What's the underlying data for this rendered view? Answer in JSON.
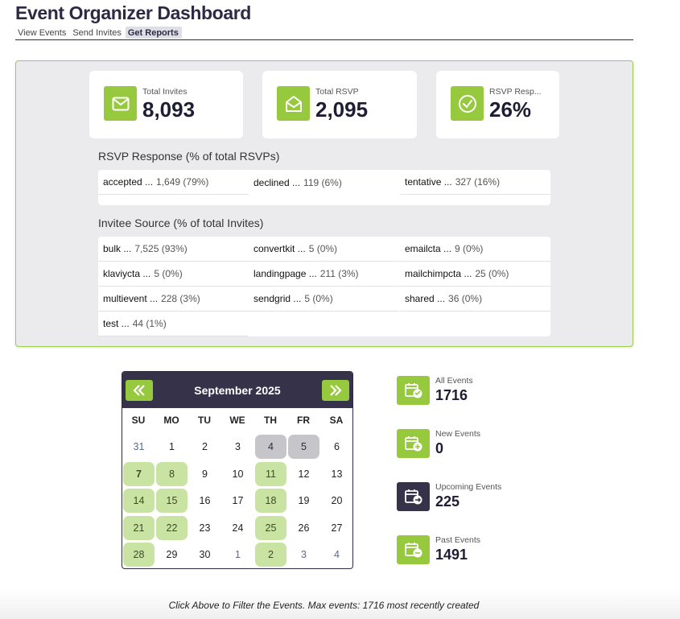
{
  "app_title": "Event Organizer Dashboard",
  "tabs": [
    {
      "label": "View Events",
      "active": false
    },
    {
      "label": "Send Invites",
      "active": false
    },
    {
      "label": "Get Reports",
      "active": true
    }
  ],
  "stats": [
    {
      "label": "Total Invites",
      "value": "8,093",
      "icon": "envelope-icon"
    },
    {
      "label": "Total RSVP",
      "value": "2,095",
      "icon": "envelope-open-icon"
    },
    {
      "label": "RSVP Resp...",
      "value": "26%",
      "icon": "check-circle-icon"
    }
  ],
  "rsvp_section": {
    "title": "RSVP Response (% of total RSVPs)",
    "items": [
      {
        "name": "accepted",
        "value": "1,649 (79%)"
      },
      {
        "name": "declined",
        "value": "119 (6%)"
      },
      {
        "name": "tentative",
        "value": "327 (16%)"
      }
    ]
  },
  "source_section": {
    "title": "Invitee Source (% of total Invites)",
    "items": [
      {
        "name": "bulk",
        "value": "7,525 (93%)"
      },
      {
        "name": "convertkit",
        "value": "5 (0%)"
      },
      {
        "name": "emailcta",
        "value": "9 (0%)"
      },
      {
        "name": "klaviycta",
        "value": "5 (0%)"
      },
      {
        "name": "landingpage",
        "value": "211 (3%)"
      },
      {
        "name": "mailchimpcta",
        "value": "25 (0%)"
      },
      {
        "name": "multievent",
        "value": "228 (3%)"
      },
      {
        "name": "sendgrid",
        "value": "5 (0%)"
      },
      {
        "name": "shared",
        "value": "36 (0%)"
      },
      {
        "name": "test",
        "value": "44 (1%)"
      }
    ]
  },
  "calendar": {
    "month_label": "September 2025",
    "prev_label": "«",
    "next_label": "»",
    "weekdays": [
      "SU",
      "MO",
      "TU",
      "WE",
      "TH",
      "FR",
      "SA"
    ],
    "weeks": [
      [
        {
          "d": "31",
          "s": "other"
        },
        {
          "d": "1",
          "s": ""
        },
        {
          "d": "2",
          "s": ""
        },
        {
          "d": "3",
          "s": ""
        },
        {
          "d": "4",
          "s": "grey"
        },
        {
          "d": "5",
          "s": "grey"
        },
        {
          "d": "6",
          "s": ""
        }
      ],
      [
        {
          "d": "7",
          "s": "green bold"
        },
        {
          "d": "8",
          "s": "green"
        },
        {
          "d": "9",
          "s": ""
        },
        {
          "d": "10",
          "s": ""
        },
        {
          "d": "11",
          "s": "green"
        },
        {
          "d": "12",
          "s": ""
        },
        {
          "d": "13",
          "s": ""
        }
      ],
      [
        {
          "d": "14",
          "s": "green"
        },
        {
          "d": "15",
          "s": "green"
        },
        {
          "d": "16",
          "s": ""
        },
        {
          "d": "17",
          "s": ""
        },
        {
          "d": "18",
          "s": "green"
        },
        {
          "d": "19",
          "s": ""
        },
        {
          "d": "20",
          "s": ""
        }
      ],
      [
        {
          "d": "21",
          "s": "green"
        },
        {
          "d": "22",
          "s": "green"
        },
        {
          "d": "23",
          "s": ""
        },
        {
          "d": "24",
          "s": ""
        },
        {
          "d": "25",
          "s": "green"
        },
        {
          "d": "26",
          "s": ""
        },
        {
          "d": "27",
          "s": ""
        }
      ],
      [
        {
          "d": "28",
          "s": "green"
        },
        {
          "d": "29",
          "s": ""
        },
        {
          "d": "30",
          "s": ""
        },
        {
          "d": "1",
          "s": "other"
        },
        {
          "d": "2",
          "s": "green"
        },
        {
          "d": "3",
          "s": "other"
        },
        {
          "d": "4",
          "s": "other"
        }
      ]
    ]
  },
  "event_stats": [
    {
      "label": "All Events",
      "value": "1716",
      "icon": "calendar-check-icon",
      "dark": false
    },
    {
      "label": "New Events",
      "value": "0",
      "icon": "calendar-plus-icon",
      "dark": false
    },
    {
      "label": "Upcoming Events",
      "value": "225",
      "icon": "calendar-arrow-icon",
      "dark": true
    },
    {
      "label": "Past Events",
      "value": "1491",
      "icon": "calendar-minus-icon",
      "dark": false
    }
  ],
  "footer_text": "Click Above to Filter the Events. Max events: 1716 most recently created",
  "colors": {
    "accent": "#96c93d",
    "dark": "#35324a",
    "panel_border": "#9ccc4a"
  }
}
